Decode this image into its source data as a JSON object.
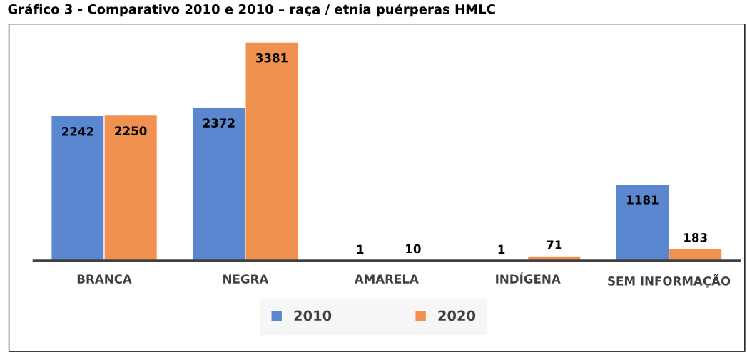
{
  "chart_data": {
    "type": "bar",
    "title": "Gráfico 3 - Comparativo 2010 e 2010 – raça / etnia puérperas HMLC",
    "categories": [
      "BRANCA",
      "NEGRA",
      "AMARELA",
      "INDÍGENA",
      "SEM INFORMAÇÃO"
    ],
    "series": [
      {
        "name": "2010",
        "color": "#5b86d0",
        "values": [
          2242,
          2372,
          1,
          1,
          1181
        ]
      },
      {
        "name": "2020",
        "color": "#f09150",
        "values": [
          2250,
          3381,
          10,
          71,
          183
        ]
      }
    ],
    "data_labels": true,
    "legend": "bottom",
    "grid": false
  }
}
